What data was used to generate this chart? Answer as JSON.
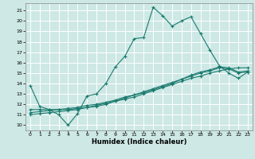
{
  "xlabel": "Humidex (Indice chaleur)",
  "bg_color": "#cde8e5",
  "grid_color": "#ffffff",
  "line_color": "#1a7a6e",
  "xlim": [
    -0.5,
    23.5
  ],
  "ylim": [
    9.5,
    21.7
  ],
  "yticks": [
    10,
    11,
    12,
    13,
    14,
    15,
    16,
    17,
    18,
    19,
    20,
    21
  ],
  "xticks": [
    0,
    1,
    2,
    3,
    4,
    5,
    6,
    7,
    8,
    9,
    10,
    11,
    12,
    13,
    14,
    15,
    16,
    17,
    18,
    19,
    20,
    21,
    22,
    23
  ],
  "series": [
    {
      "x": [
        0,
        1,
        2,
        3,
        4,
        5,
        6,
        7,
        8,
        9,
        10,
        11,
        12,
        13,
        14,
        15,
        16,
        17,
        18,
        19,
        20,
        21,
        22,
        23
      ],
      "y": [
        13.8,
        11.8,
        11.5,
        11.0,
        10.0,
        11.1,
        12.8,
        13.0,
        14.0,
        15.6,
        16.6,
        18.3,
        18.4,
        21.3,
        20.5,
        19.5,
        20.0,
        20.4,
        18.8,
        17.2,
        15.7,
        15.0,
        14.5,
        15.1
      ]
    },
    {
      "x": [
        0,
        1,
        2,
        3,
        4,
        5,
        6,
        7,
        8,
        9,
        10,
        11,
        12,
        13,
        14,
        15,
        16,
        17,
        18,
        19,
        20,
        21,
        22,
        23
      ],
      "y": [
        11.5,
        11.5,
        11.5,
        11.5,
        11.5,
        11.6,
        11.7,
        11.9,
        12.1,
        12.3,
        12.5,
        12.7,
        13.0,
        13.3,
        13.6,
        13.9,
        14.2,
        14.5,
        14.7,
        15.0,
        15.2,
        15.4,
        15.5,
        15.5
      ]
    },
    {
      "x": [
        0,
        1,
        2,
        3,
        4,
        5,
        6,
        7,
        8,
        9,
        10,
        11,
        12,
        13,
        14,
        15,
        16,
        17,
        18,
        19,
        20,
        21,
        22,
        23
      ],
      "y": [
        11.2,
        11.3,
        11.4,
        11.5,
        11.6,
        11.7,
        11.9,
        12.0,
        12.2,
        12.4,
        12.7,
        12.9,
        13.2,
        13.5,
        13.8,
        14.1,
        14.4,
        14.8,
        15.1,
        15.3,
        15.6,
        15.5,
        15.1,
        15.2
      ]
    },
    {
      "x": [
        0,
        1,
        2,
        3,
        4,
        5,
        6,
        7,
        8,
        9,
        10,
        11,
        12,
        13,
        14,
        15,
        16,
        17,
        18,
        19,
        20,
        21,
        22,
        23
      ],
      "y": [
        11.0,
        11.1,
        11.2,
        11.3,
        11.4,
        11.5,
        11.7,
        11.8,
        12.0,
        12.3,
        12.6,
        12.9,
        13.1,
        13.4,
        13.7,
        14.0,
        14.4,
        14.7,
        15.0,
        15.2,
        15.5,
        15.4,
        15.0,
        15.1
      ]
    }
  ]
}
